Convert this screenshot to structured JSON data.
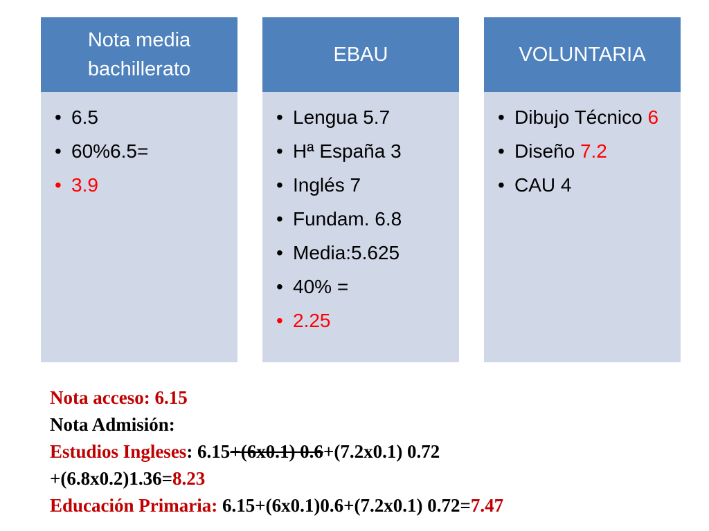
{
  "columns": [
    {
      "header": "Nota media bachillerato",
      "items": [
        "6.5",
        "60%6.5=",
        {
          "red_text": "3.9"
        }
      ]
    },
    {
      "header": "EBAU",
      "items": [
        "Lengua 5.7",
        "Hª España 3",
        "Inglés 7",
        "Fundam. 6.8",
        "Media:5.625",
        "40% =",
        {
          "red_text": "2.25"
        }
      ]
    },
    {
      "header": "VOLUNTARIA",
      "items": [
        {
          "text": "Dibujo Técnico",
          "red_text": "6"
        },
        {
          "text": "Diseño",
          "red_text": "7.2"
        },
        "CAU 4"
      ]
    }
  ],
  "highlight_color": "#ff0000",
  "footer": [
    [
      {
        "text": "Nota acceso: 6.15",
        "color": "#c00000"
      }
    ],
    [
      {
        "text": "Nota Admisión:",
        "color": "#000000"
      }
    ],
    [
      {
        "text": "Estudios Ingleses",
        "color": "#c00000"
      },
      {
        "text": ": 6.15",
        "color": "#000000"
      },
      {
        "text": "+(6x0.1) 0.6",
        "color": "#000000",
        "strike": true
      },
      {
        "text": "+(7.2x0.1) 0.72",
        "color": "#000000"
      }
    ],
    [
      {
        "text": "+(6.8x0.2)1.36=",
        "color": "#000000"
      },
      {
        "text": "8.23",
        "color": "#c00000"
      }
    ],
    [
      {
        "text": "Educación Primaria:",
        "color": "#c00000"
      },
      {
        "text": " 6.15+(6x0.1)0.6+(7.2x0.1) 0.72=",
        "color": "#000000"
      },
      {
        "text": "7.47",
        "color": "#c00000"
      }
    ]
  ]
}
